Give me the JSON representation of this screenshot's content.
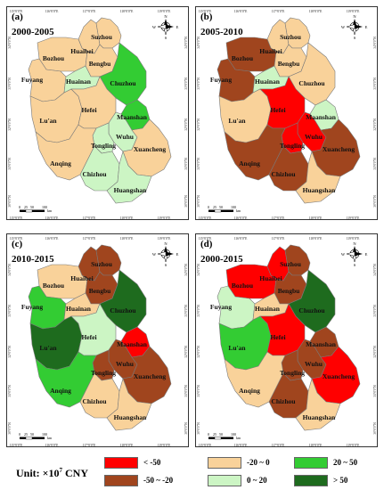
{
  "panels": [
    {
      "label": "(a)",
      "period": "2000-2005",
      "fills": {
        "Huaibei": "c3",
        "Suzhou": "c3",
        "Bozhou": "c3",
        "Bengbu": "c3",
        "Fuyang": "c3",
        "Huainan": "c4",
        "Chuzhou": "c5",
        "Lu'an": "c3",
        "Hefei": "c3",
        "Maanshan": "c5",
        "Wuhu": "c4",
        "Tongling": "c4",
        "Anqing": "c3",
        "Chizhou": "c4",
        "Xuancheng": "c3",
        "Huangshan": "c4"
      }
    },
    {
      "label": "(b)",
      "period": "2005-2010",
      "fills": {
        "Huaibei": "c3",
        "Suzhou": "c3",
        "Bozhou": "c2",
        "Bengbu": "c3",
        "Fuyang": "c2",
        "Huainan": "c4",
        "Chuzhou": "c3",
        "Lu'an": "c3",
        "Hefei": "c1",
        "Maanshan": "c4",
        "Wuhu": "c1",
        "Tongling": "c1",
        "Anqing": "c2",
        "Chizhou": "c2",
        "Xuancheng": "c2",
        "Huangshan": "c3"
      }
    },
    {
      "label": "(c)",
      "period": "2010-2015",
      "fills": {
        "Huaibei": "c2",
        "Suzhou": "c2",
        "Bozhou": "c3",
        "Bengbu": "c2",
        "Fuyang": "c5",
        "Huainan": "c3",
        "Chuzhou": "c6",
        "Lu'an": "c6",
        "Hefei": "c4",
        "Maanshan": "c1",
        "Wuhu": "c2",
        "Tongling": "c2",
        "Anqing": "c5",
        "Chizhou": "c3",
        "Xuancheng": "c2",
        "Huangshan": "c3"
      }
    },
    {
      "label": "(d)",
      "period": "2000-2015",
      "fills": {
        "Huaibei": "c1",
        "Suzhou": "c2",
        "Bozhou": "c1",
        "Bengbu": "c2",
        "Fuyang": "c4",
        "Huainan": "c3",
        "Chuzhou": "c6",
        "Lu'an": "c5",
        "Hefei": "c1",
        "Maanshan": "c2",
        "Wuhu": "c2",
        "Tongling": "c2",
        "Anqing": "c3",
        "Chizhou": "c2",
        "Xuancheng": "c1",
        "Huangshan": "c3"
      }
    }
  ],
  "cities": [
    "Huaibei",
    "Suzhou",
    "Bozhou",
    "Bengbu",
    "Fuyang",
    "Huainan",
    "Chuzhou",
    "Lu'an",
    "Hefei",
    "Maanshan",
    "Wuhu",
    "Tongling",
    "Anqing",
    "Chizhou",
    "Xuancheng",
    "Huangshan"
  ],
  "lon_ticks": [
    "115°0'0\"E",
    "116°0'0\"E",
    "117°0'0\"E",
    "118°0'0\"E",
    "119°0'0\"E"
  ],
  "lat_ticks": [
    "34°0'0\"N",
    "33°0'0\"N",
    "32°0'0\"N",
    "31°0'0\"N",
    "30°0'0\"N"
  ],
  "scale_labels": [
    "0",
    "25",
    "50",
    "100",
    "km"
  ],
  "north_letters": {
    "n": "N",
    "e": "E",
    "s": "S",
    "w": "W"
  },
  "legend": {
    "unit_prefix": "Unit: ×10",
    "unit_exp": "7",
    "unit_suffix": " CNY",
    "items": [
      {
        "key": "c1",
        "label": "< -50",
        "color": "#ff0000"
      },
      {
        "key": "c3",
        "label": "-20 ~ 0",
        "color": "#f9d29a"
      },
      {
        "key": "c5",
        "label": "20 ~ 50",
        "color": "#33cc33"
      },
      {
        "key": "c2",
        "label": "-50 ~ -20",
        "color": "#a0451e"
      },
      {
        "key": "c4",
        "label": "0 ~ 20",
        "color": "#ccf5c4"
      },
      {
        "key": "c6",
        "label": "> 50",
        "color": "#1e6b1e"
      }
    ]
  }
}
